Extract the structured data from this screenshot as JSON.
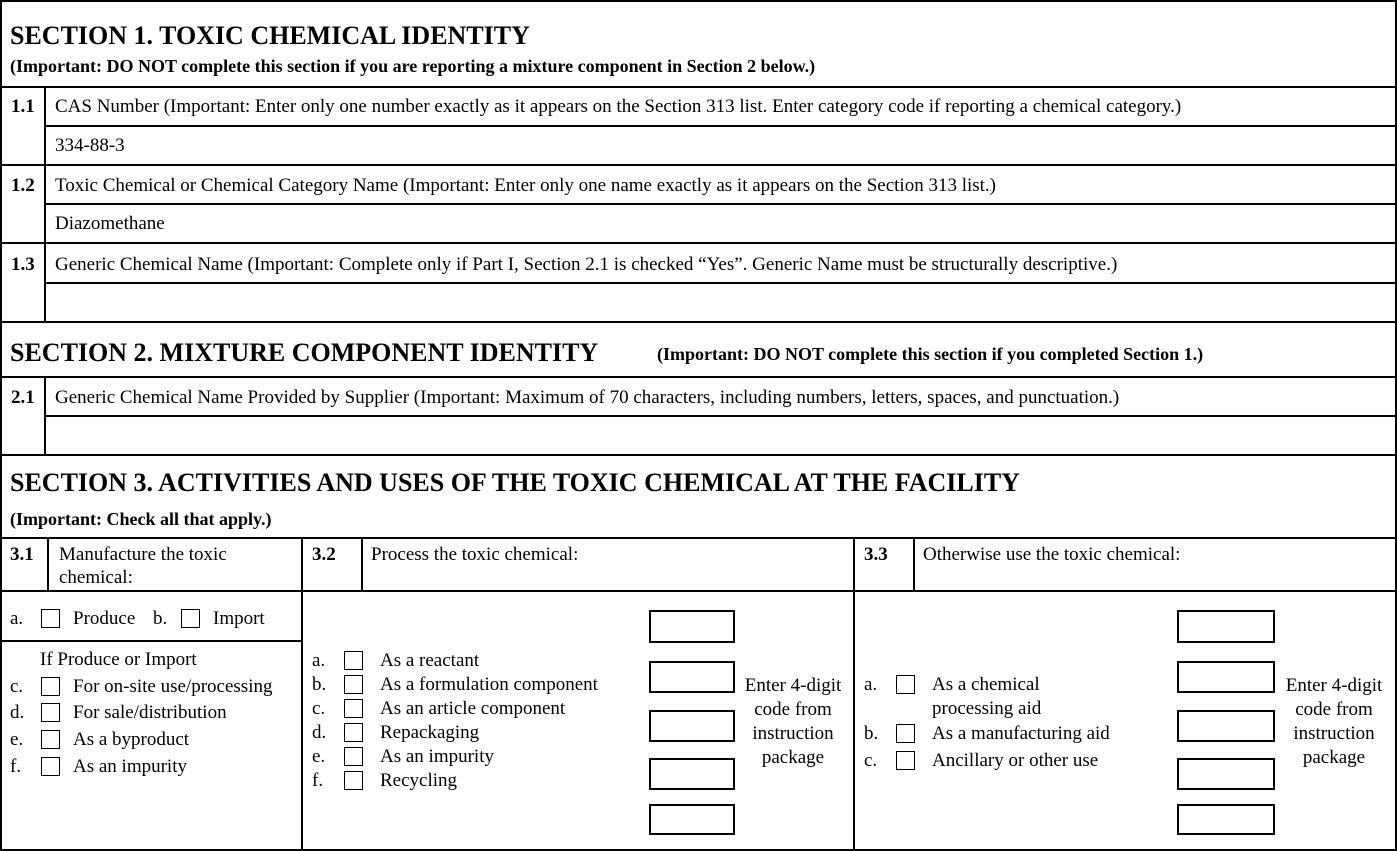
{
  "section1": {
    "title": "SECTION 1. TOXIC CHEMICAL IDENTITY",
    "note": "(Important: DO NOT complete this section if you are reporting a mixture component in Section 2 below.)",
    "fields": [
      {
        "num": "1.1",
        "label": "CAS Number (Important:  Enter only one number exactly as it appears on the Section 313 list. Enter category code if reporting a chemical category.)",
        "value": "334-88-3"
      },
      {
        "num": "1.2",
        "label": "Toxic Chemical or Chemical Category Name (Important: Enter only one name exactly as it appears on the Section 313 list.)",
        "value": "Diazomethane"
      },
      {
        "num": "1.3",
        "label": "Generic Chemical Name (Important: Complete only if Part I, Section 2.1 is checked “Yes”. Generic Name must be structurally descriptive.)",
        "value": ""
      }
    ]
  },
  "section2": {
    "title": "SECTION 2. MIXTURE COMPONENT IDENTITY",
    "note": "(Important: DO NOT complete this section if you completed Section 1.)",
    "fields": [
      {
        "num": "2.1",
        "label": "Generic Chemical Name Provided by Supplier (Important: Maximum of 70 characters, including numbers, letters, spaces, and punctuation.)",
        "value": ""
      }
    ]
  },
  "section3": {
    "title": "SECTION 3. ACTIVITIES AND USES OF THE TOXIC CHEMICAL AT THE FACILITY",
    "note": "(Important: Check all that apply.)",
    "s31": {
      "num": "3.1",
      "label_line1": "Manufacture the toxic",
      "label_line2": "chemical:",
      "a_letter": "a.",
      "a_label": "Produce",
      "b_letter": "b.",
      "b_label": "Import",
      "if_label": "If Produce or Import",
      "items": [
        {
          "letter": "c.",
          "label": "For on-site use/processing",
          "checked": false
        },
        {
          "letter": "d.",
          "label": "For sale/distribution",
          "checked": false
        },
        {
          "letter": "e.",
          "label": "As a byproduct",
          "checked": false
        },
        {
          "letter": "f.",
          "label": "As an impurity",
          "checked": false
        }
      ]
    },
    "s32": {
      "num": "3.2",
      "label": "Process the toxic chemical:",
      "items": [
        {
          "letter": "a.",
          "label": "As a reactant",
          "checked": false
        },
        {
          "letter": "b.",
          "label": "As a formulation component",
          "checked": false
        },
        {
          "letter": "c.",
          "label": "As an article component",
          "checked": false
        },
        {
          "letter": "d.",
          "label": "Repackaging",
          "checked": false
        },
        {
          "letter": "e.",
          "label": "As an impurity",
          "checked": false
        },
        {
          "letter": "f.",
          "label": "Recycling",
          "checked": false
        }
      ],
      "code_note": [
        "Enter 4-digit",
        "code from",
        "instruction",
        "package"
      ],
      "codes": [
        "",
        "",
        "",
        "",
        ""
      ]
    },
    "s33": {
      "num": "3.3",
      "label": "Otherwise use the toxic chemical:",
      "items": [
        {
          "letter": "a.",
          "label": "As a chemical",
          "label2": "processing aid",
          "checked": false
        },
        {
          "letter": "b.",
          "label": "As a manufacturing aid",
          "checked": false
        },
        {
          "letter": "c.",
          "label": "Ancillary or other use",
          "checked": false
        }
      ],
      "code_note": [
        "Enter 4-digit",
        "code from",
        "instruction",
        "package"
      ],
      "codes": [
        "",
        "",
        "",
        "",
        ""
      ]
    }
  }
}
